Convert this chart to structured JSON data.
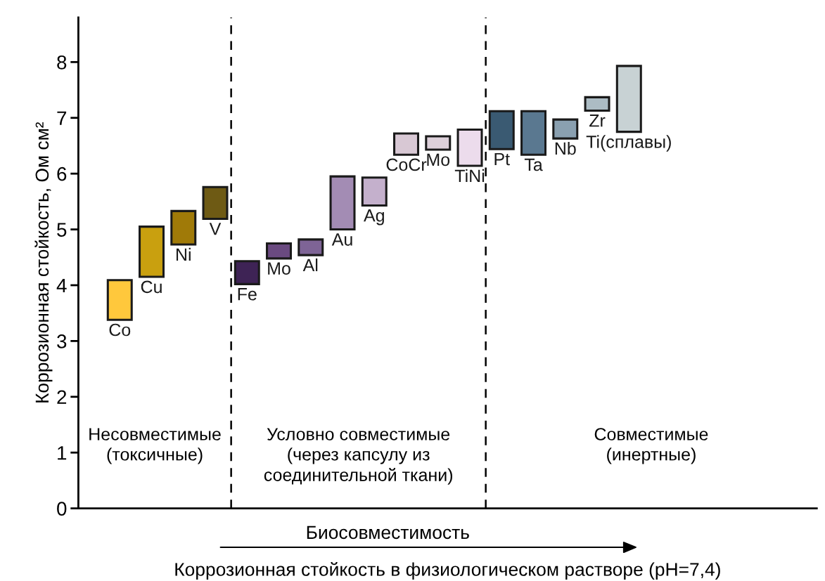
{
  "chart_data": {
    "type": "bar",
    "categories": [
      "Co",
      "Cu",
      "Ni",
      "V",
      "Fe",
      "Mo",
      "Al",
      "Au",
      "Ag",
      "CoCr",
      "Mo",
      "TiNi",
      "Pt",
      "Ta",
      "Nb",
      "Zr",
      "Ti(сплавы)"
    ],
    "base": [
      3.38,
      4.15,
      4.73,
      5.19,
      4.02,
      4.48,
      4.54,
      5.0,
      5.43,
      6.34,
      6.43,
      6.14,
      6.44,
      6.34,
      6.63,
      7.13,
      6.75
    ],
    "values": [
      0.71,
      0.9,
      0.6,
      0.57,
      0.41,
      0.27,
      0.28,
      0.95,
      0.5,
      0.38,
      0.24,
      0.65,
      0.68,
      0.78,
      0.34,
      0.24,
      1.18
    ],
    "colors": [
      "#ffc83c",
      "#c9a00f",
      "#a07a08",
      "#6e5a14",
      "#3e2355",
      "#6a4a80",
      "#7e6496",
      "#a38cb4",
      "#c4b0cc",
      "#d8c8d4",
      "#ddd0da",
      "#ecdcec",
      "#3a5a72",
      "#5a7890",
      "#8aa0b0",
      "#acbcc4",
      "#c8d2d4"
    ],
    "ylabel": "Коррозионная стойкость, Ом см²",
    "xlabel": "Коррозионная стойкость в физиологическом растворе (pH=7,4)",
    "ylim": [
      0,
      8.8
    ],
    "yticks": [
      0,
      1,
      2,
      3,
      4,
      5,
      6,
      7,
      8
    ],
    "tick_labels": "y",
    "grid": false,
    "annotations": [
      "Несовместимые\n(токсичные)",
      "Условно совместимые\n(через капсулу из\nсоединительной ткани)",
      "Совместимые\n(инертные)",
      "Биосовместимость"
    ]
  }
}
